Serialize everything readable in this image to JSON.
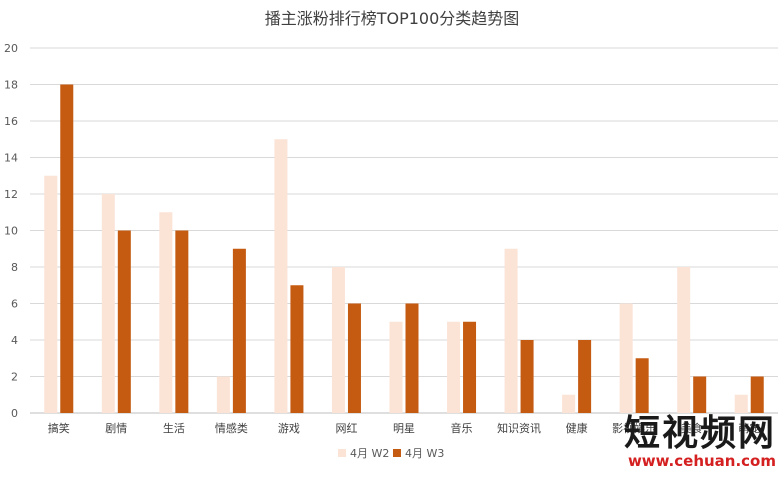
{
  "chart_data": {
    "type": "bar",
    "title": "播主涨粉排行榜TOP100分类趋势图",
    "xlabel": "",
    "ylabel": "",
    "ylim": [
      0,
      20
    ],
    "yticks": [
      0,
      2,
      4,
      6,
      8,
      10,
      12,
      14,
      16,
      18,
      20
    ],
    "grid": true,
    "legend_position": "bottom",
    "categories": [
      "搞笑",
      "剧情",
      "生活",
      "情感类",
      "游戏",
      "网红",
      "明星",
      "音乐",
      "知识资讯",
      "健康",
      "影视娱乐",
      "美食",
      "萌宠"
    ],
    "series": [
      {
        "name": "4月 W2",
        "color": "#fbe3d6",
        "values": [
          13,
          12,
          11,
          2,
          15,
          8,
          5,
          5,
          9,
          1,
          6,
          8,
          1
        ]
      },
      {
        "name": "4月 W3",
        "color": "#c55a11",
        "values": [
          18,
          10,
          10,
          9,
          7,
          6,
          6,
          5,
          4,
          4,
          3,
          2,
          2
        ]
      }
    ]
  },
  "watermark": {
    "text": "短视频网",
    "url": "www.cehuan.com"
  }
}
